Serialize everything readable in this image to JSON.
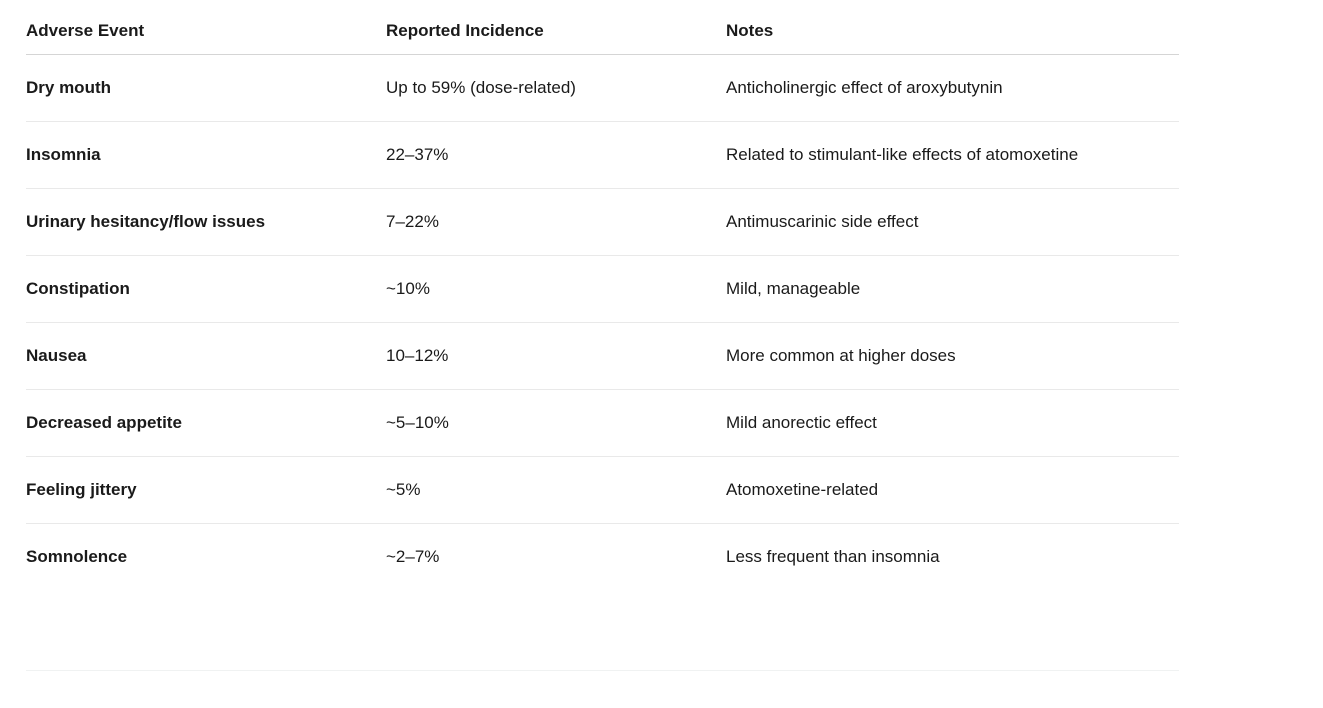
{
  "page": {
    "background": "#ffffff",
    "text_color": "#1a1a1a",
    "header_border_color": "#d5d5d5",
    "row_border_color": "#e9e9e9",
    "bottom_divider_color": "#f0f2f2"
  },
  "table": {
    "columns": [
      "Adverse Event",
      "Reported Incidence",
      "Notes"
    ],
    "rows": [
      [
        "Dry mouth",
        "Up to 59% (dose-related)",
        "Anticholinergic effect of aroxybutynin"
      ],
      [
        "Insomnia",
        "22–37%",
        "Related to stimulant-like effects of atomoxetine"
      ],
      [
        "Urinary hesitancy/flow issues",
        "7–22%",
        "Antimuscarinic side effect"
      ],
      [
        "Constipation",
        "~10%",
        "Mild, manageable"
      ],
      [
        "Nausea",
        "10–12%",
        "More common at higher doses"
      ],
      [
        "Decreased appetite",
        "~5–10%",
        "Mild anorectic effect"
      ],
      [
        "Feeling jittery",
        "~5%",
        "Atomoxetine-related"
      ],
      [
        "Somnolence",
        "~2–7%",
        "Less frequent than insomnia"
      ]
    ]
  },
  "chart_data": {
    "type": "table",
    "title": "",
    "columns": [
      "Adverse Event",
      "Reported Incidence",
      "Notes"
    ],
    "rows": [
      [
        "Dry mouth",
        "Up to 59% (dose-related)",
        "Anticholinergic effect of aroxybutynin"
      ],
      [
        "Insomnia",
        "22–37%",
        "Related to stimulant-like effects of atomoxetine"
      ],
      [
        "Urinary hesitancy/flow issues",
        "7–22%",
        "Antimuscarinic side effect"
      ],
      [
        "Constipation",
        "~10%",
        "Mild, manageable"
      ],
      [
        "Nausea",
        "10–12%",
        "More common at higher doses"
      ],
      [
        "Decreased appetite",
        "~5–10%",
        "Mild anorectic effect"
      ],
      [
        "Feeling jittery",
        "~5%",
        "Atomoxetine-related"
      ],
      [
        "Somnolence",
        "~2–7%",
        "Less frequent than insomnia"
      ]
    ]
  }
}
